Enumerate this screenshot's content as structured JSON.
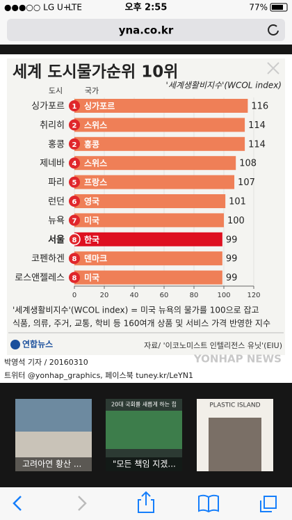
{
  "status_bar": {
    "carrier": "●●●○○ LG U+",
    "network": "LTE",
    "time": "오후 2:55",
    "battery": "77%"
  },
  "address_bar": {
    "url": "yna.co.kr"
  },
  "chart_data": {
    "type": "bar",
    "orientation": "horizontal",
    "title": "세계 도시물가순위 10위",
    "subtitle": "'세계생활비지수'(WCOL index)",
    "column_headers": [
      "도시",
      "국가"
    ],
    "categories": [
      "싱가포르",
      "취리히",
      "홍콩",
      "제네바",
      "파리",
      "런던",
      "뉴욕",
      "서울",
      "코펜하겐",
      "로스앤젤레스"
    ],
    "countries": [
      "싱가포르",
      "스위스",
      "홍콩",
      "스위스",
      "프랑스",
      "영국",
      "미국",
      "한국",
      "덴마크",
      "미국"
    ],
    "ranks": [
      1,
      2,
      2,
      4,
      5,
      6,
      7,
      8,
      8,
      8
    ],
    "values": [
      116,
      114,
      114,
      108,
      107,
      101,
      100,
      99,
      99,
      99
    ],
    "colors": [
      "#ef7f57",
      "#ef7f57",
      "#ef7f57",
      "#ef7f57",
      "#ef7f57",
      "#ef7f57",
      "#ef7f57",
      "#de1020",
      "#ef7f57",
      "#ef7f57"
    ],
    "rank_color": "#e0262b",
    "xlim": [
      0,
      120
    ],
    "xticks": [
      0,
      20,
      40,
      60,
      80,
      100,
      120
    ],
    "note": [
      "'세계생활비지수'(WCOL index) = 미국 뉴욕의 물가를 100으로 잡고",
      "식품, 의류, 주거, 교통, 학비 등 160여개 상품 및 서비스 가격 반영한 지수"
    ],
    "logo": "연합뉴스",
    "source": "자료/ '이코노미스트 인텔리전스 유닛'(EIU)",
    "watermark": "YONHAP NEWS"
  },
  "byline": {
    "author": "박영석 기자 / 20160310",
    "social": "트위터 @yonhap_graphics, 페이스북 tuney.kr/LeYN1"
  },
  "related": [
    {
      "caption": "고려아연 황산 ..."
    },
    {
      "caption": "\"모든 책임 지겠...",
      "image_text": "20대 국회를 새롭게 하는 힘"
    },
    {
      "image_text": "PLASTIC ISLAND"
    }
  ]
}
